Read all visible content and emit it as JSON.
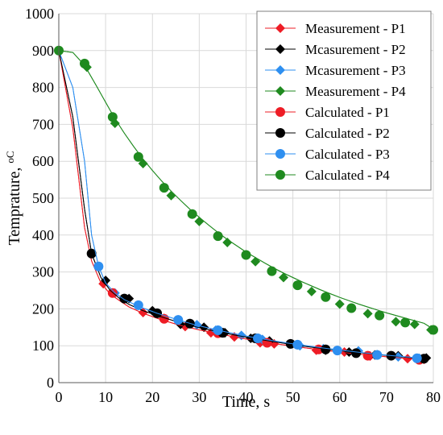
{
  "chart_data": {
    "type": "line",
    "xlabel": "Time, s",
    "ylabel": "Temprature, ",
    "ylabel_unit": "oC",
    "xlim": [
      0,
      80
    ],
    "ylim": [
      0,
      1000
    ],
    "xticks": [
      "0",
      "10",
      "20",
      "30",
      "40",
      "50",
      "60",
      "70",
      "80"
    ],
    "yticks": [
      "0",
      "100",
      "200",
      "300",
      "400",
      "500",
      "600",
      "700",
      "800",
      "900",
      "1000"
    ],
    "grid": true,
    "legend_position": "top-right",
    "series": [
      {
        "name": "Measurement - P1",
        "marker": "diamond",
        "color": "#ee1c25",
        "x": [
          0,
          3,
          5.5,
          7,
          9,
          11,
          13,
          15,
          18,
          22,
          26,
          30,
          34,
          38,
          42,
          46,
          50,
          54,
          58,
          62,
          66,
          70,
          74,
          78
        ],
        "y": [
          900,
          690,
          420,
          330,
          270,
          240,
          222,
          205,
          188,
          170,
          155,
          143,
          133,
          123,
          114,
          106,
          99,
          92,
          86,
          80,
          75,
          70,
          66,
          62
        ],
        "markers_x": [
          0,
          9.5,
          18,
          22.5,
          27,
          32.5,
          37.5,
          43,
          46,
          55,
          61,
          66.5,
          74.5,
          78
        ],
        "markers_y": [
          900,
          268,
          190,
          174,
          152,
          135,
          124,
          108,
          105,
          88,
          83,
          72,
          65,
          63
        ]
      },
      {
        "name": "Mcasurement - P2",
        "marker": "diamond",
        "color": "#000000",
        "x": [
          0,
          3,
          5.5,
          7,
          9,
          11,
          13,
          15,
          18,
          22,
          26,
          30,
          34,
          38,
          42,
          46,
          50,
          54,
          58,
          62,
          66,
          70,
          74,
          78
        ],
        "y": [
          900,
          720,
          470,
          350,
          285,
          250,
          228,
          212,
          195,
          178,
          162,
          149,
          138,
          128,
          119,
          111,
          103,
          96,
          90,
          84,
          79,
          74,
          69,
          65
        ],
        "markers_x": [
          0,
          10,
          15,
          20,
          26,
          31,
          35.5,
          41,
          45,
          51,
          57,
          62,
          67.5,
          72.5,
          78.5
        ],
        "markers_y": [
          900,
          277,
          228,
          195,
          158,
          150,
          135,
          120,
          113,
          103,
          88,
          83,
          75,
          73,
          67
        ]
      },
      {
        "name": "Mcasurement - P3",
        "marker": "diamond",
        "color": "#2e8ff0",
        "x": [
          0,
          3,
          5.5,
          7,
          8.5,
          10,
          12,
          14,
          17,
          21,
          25,
          29,
          33,
          37,
          41,
          45,
          49,
          53,
          57,
          61,
          65,
          69,
          73,
          77
        ],
        "y": [
          900,
          800,
          600,
          400,
          315,
          270,
          243,
          225,
          207,
          188,
          172,
          157,
          145,
          134,
          124,
          115,
          107,
          100,
          93,
          87,
          81,
          76,
          71,
          67
        ],
        "markers_x": [
          0,
          12,
          17,
          25.5,
          29.5,
          33.5,
          39,
          43.5,
          51.5,
          56.5,
          64,
          68,
          72.5,
          77
        ],
        "markers_y": [
          900,
          243,
          210,
          170,
          157,
          142,
          128,
          117,
          100,
          92,
          86,
          76,
          70,
          66
        ]
      },
      {
        "name": "Measurement - P4",
        "marker": "diamond",
        "color": "#1f8a1f",
        "x": [
          0,
          3,
          5.5,
          8,
          10,
          12,
          14,
          16,
          18,
          20,
          22,
          24,
          26,
          28,
          30,
          32,
          34,
          36,
          38,
          40,
          42,
          44,
          46,
          48,
          50,
          52,
          54,
          56,
          58,
          60,
          62,
          64,
          66,
          68,
          70,
          72,
          74,
          76,
          78,
          80
        ],
        "y": [
          900,
          895,
          860,
          805,
          760,
          715,
          676,
          640,
          606,
          575,
          546,
          519,
          494,
          470,
          448,
          427,
          407,
          388,
          371,
          354,
          339,
          324,
          310,
          297,
          285,
          273,
          262,
          251,
          241,
          231,
          222,
          213,
          205,
          197,
          189,
          182,
          175,
          168,
          161,
          145
        ],
        "markers_x": [
          6,
          12,
          18,
          24,
          30,
          36,
          42,
          48,
          54,
          60,
          66,
          72,
          76,
          79.5
        ],
        "markers_y": [
          855,
          703,
          594,
          507,
          437,
          380,
          328,
          285,
          247,
          213,
          187,
          165,
          158,
          143
        ]
      },
      {
        "name": "Calculated - P1",
        "marker": "circle",
        "color": "#ee1c25",
        "x": [
          0,
          3,
          5.5,
          7,
          9,
          11,
          13,
          15,
          18,
          22,
          26,
          30,
          34,
          38,
          42,
          46,
          50,
          54,
          58,
          62,
          66,
          70,
          74,
          78
        ],
        "y": [
          900,
          690,
          420,
          330,
          270,
          240,
          222,
          205,
          188,
          170,
          155,
          143,
          133,
          123,
          114,
          106,
          99,
          92,
          86,
          80,
          75,
          70,
          66,
          62
        ],
        "markers_x": [
          11.5,
          22.5,
          34,
          44.5,
          55.5,
          66,
          77
        ],
        "markers_y": [
          243,
          173,
          134,
          108,
          90,
          73,
          62
        ]
      },
      {
        "name": "Calculated - P2",
        "marker": "circle",
        "color": "#000000",
        "x": [
          0,
          3,
          5.5,
          7,
          9,
          11,
          13,
          15,
          18,
          22,
          26,
          30,
          34,
          38,
          42,
          46,
          50,
          54,
          58,
          62,
          66,
          70,
          74,
          78
        ],
        "y": [
          900,
          720,
          470,
          350,
          285,
          250,
          228,
          212,
          195,
          178,
          162,
          149,
          138,
          128,
          119,
          111,
          103,
          96,
          90,
          84,
          79,
          74,
          69,
          65
        ],
        "markers_x": [
          7,
          14,
          21,
          28,
          35,
          42,
          49.5,
          57,
          63.5,
          71,
          78
        ],
        "markers_y": [
          350,
          228,
          188,
          160,
          135,
          120,
          105,
          90,
          80,
          73,
          65
        ]
      },
      {
        "name": "Calculated - P3",
        "marker": "circle",
        "color": "#2e8ff0",
        "x": [
          0,
          3,
          5.5,
          7,
          8.5,
          10,
          12,
          14,
          17,
          21,
          25,
          29,
          33,
          37,
          41,
          45,
          49,
          53,
          57,
          61,
          65,
          69,
          73,
          77
        ],
        "y": [
          900,
          800,
          600,
          400,
          315,
          270,
          243,
          225,
          207,
          188,
          172,
          157,
          145,
          134,
          124,
          115,
          107,
          100,
          93,
          87,
          81,
          76,
          71,
          67
        ],
        "markers_x": [
          8.5,
          17,
          25.5,
          34,
          42.5,
          51,
          59.5,
          68,
          76.5
        ],
        "markers_y": [
          315,
          210,
          170,
          142,
          120,
          103,
          87,
          75,
          66
        ]
      },
      {
        "name": "Calculated - P4",
        "marker": "circle",
        "color": "#1f8a1f",
        "x": [
          0,
          3,
          5.5,
          8,
          10,
          12,
          14,
          16,
          18,
          20,
          22,
          24,
          26,
          28,
          30,
          32,
          34,
          36,
          38,
          40,
          42,
          44,
          46,
          48,
          50,
          52,
          54,
          56,
          58,
          60,
          62,
          64,
          66,
          68,
          70,
          72,
          74,
          76,
          78,
          80
        ],
        "y": [
          900,
          895,
          860,
          805,
          760,
          715,
          676,
          640,
          606,
          575,
          546,
          519,
          494,
          470,
          448,
          427,
          407,
          388,
          371,
          354,
          339,
          324,
          310,
          297,
          285,
          273,
          262,
          251,
          241,
          231,
          222,
          213,
          205,
          197,
          189,
          182,
          175,
          168,
          161,
          145
        ],
        "markers_x": [
          0,
          5.5,
          11.5,
          17,
          22.5,
          28.5,
          34,
          40,
          45.5,
          51,
          57,
          62.5,
          68.5,
          74,
          80
        ],
        "markers_y": [
          900,
          865,
          720,
          612,
          528,
          457,
          397,
          346,
          302,
          264,
          232,
          202,
          182,
          163,
          143
        ]
      }
    ]
  }
}
